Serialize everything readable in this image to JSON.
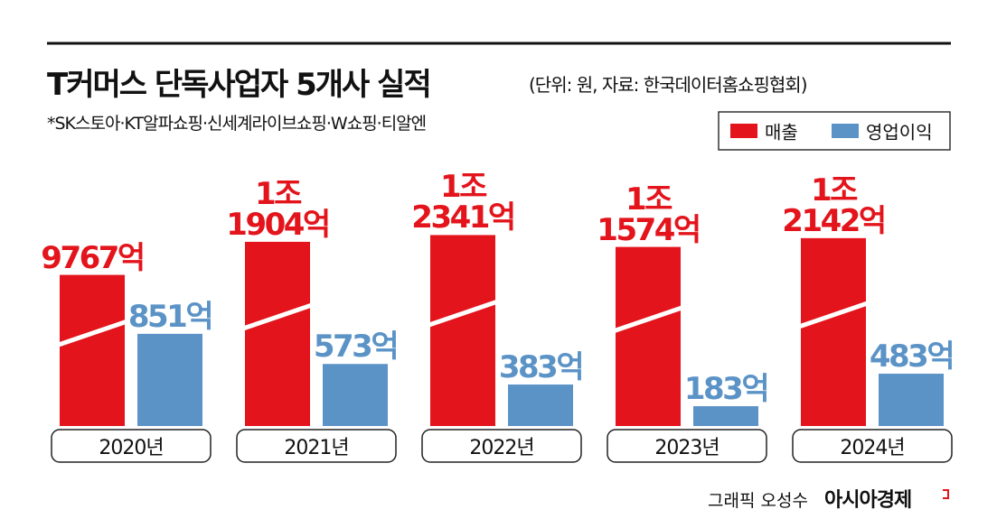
{
  "chart_data": {
    "type": "bar",
    "title": "T커머스 단독사업자 5개사 실적",
    "subtitle": "(단위: 원, 자료: 한국데이터홈쇼핑협회)",
    "note": "*SK스토아·KT알파쇼핑·신세계라이브쇼핑·W쇼핑·티알엔",
    "categories": [
      "2020년",
      "2021년",
      "2022년",
      "2023년",
      "2024년"
    ],
    "series": [
      {
        "name": "매출",
        "color": "#e3141b",
        "values": [
          9767,
          11904,
          12341,
          11574,
          12142
        ],
        "value_labels": [
          "9767억",
          "1조\n1904억",
          "1조\n2341억",
          "1조\n1574억",
          "1조\n2142억"
        ]
      },
      {
        "name": "영업이익",
        "color": "#5b93c7",
        "axis": "y2",
        "values": [
          851,
          573,
          383,
          183,
          483
        ],
        "value_labels": [
          "851억",
          "573억",
          "383억",
          "183억",
          "483억"
        ]
      }
    ],
    "ylim": [
      0,
      14000
    ],
    "y2lim": [
      0,
      2000
    ],
    "legend": "top-right",
    "credit": "그래픽 오성수",
    "brand": "아시아경제"
  }
}
